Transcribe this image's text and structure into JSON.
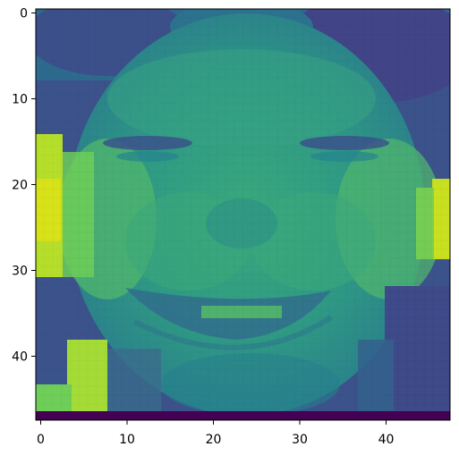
{
  "image": {
    "description_of_type": "grayscale face rendered with viridis colormap",
    "colormap": "viridis",
    "pixel_grid": [
      48,
      48
    ]
  },
  "axes": {
    "x_ticks": [
      "0",
      "10",
      "20",
      "30",
      "40"
    ],
    "y_ticks": [
      "0",
      "10",
      "20",
      "30",
      "40"
    ]
  },
  "colors": {
    "dark_purple": "#440154",
    "blue_purple": "#3b528b",
    "teal": "#21918c",
    "green": "#35b779",
    "yellow_green": "#90d743",
    "yellow": "#fde725"
  }
}
